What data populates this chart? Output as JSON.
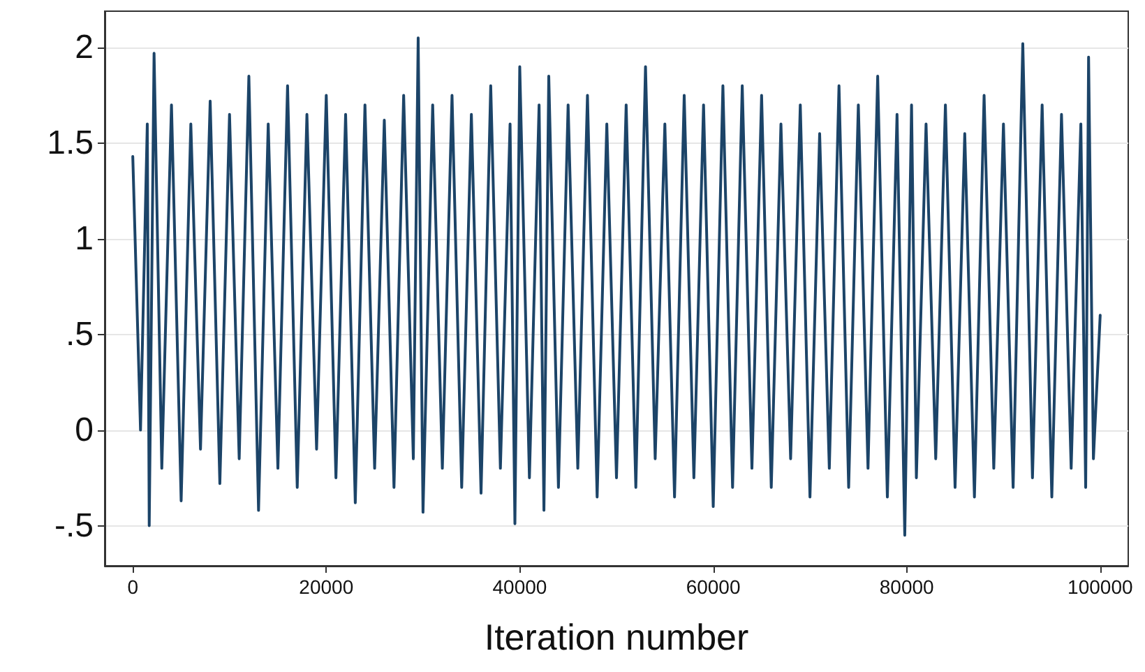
{
  "chart_data": {
    "type": "line",
    "xlabel": "Iteration number",
    "x": [
      0,
      800,
      1500,
      1700,
      2200,
      3000,
      4000,
      5000,
      6000,
      7000,
      8000,
      9000,
      10000,
      11000,
      12000,
      13000,
      14000,
      15000,
      16000,
      17000,
      18000,
      19000,
      20000,
      21000,
      22000,
      23000,
      24000,
      25000,
      26000,
      27000,
      28000,
      29000,
      29500,
      30000,
      31000,
      32000,
      33000,
      34000,
      35000,
      36000,
      37000,
      38000,
      39000,
      39500,
      40000,
      41000,
      42000,
      42500,
      43000,
      44000,
      45000,
      46000,
      47000,
      48000,
      49000,
      50000,
      51000,
      52000,
      53000,
      54000,
      55000,
      56000,
      57000,
      58000,
      59000,
      60000,
      61000,
      62000,
      63000,
      64000,
      65000,
      66000,
      67000,
      68000,
      69000,
      70000,
      71000,
      72000,
      73000,
      74000,
      75000,
      76000,
      77000,
      78000,
      79000,
      79800,
      80500,
      81000,
      82000,
      83000,
      84000,
      85000,
      86000,
      87000,
      88000,
      89000,
      90000,
      91000,
      92000,
      93000,
      94000,
      95000,
      96000,
      97000,
      98000,
      98500,
      98800,
      99300,
      100000
    ],
    "series": [
      {
        "color": "#1c4468",
        "values": [
          1.43,
          0.0,
          1.6,
          -0.5,
          1.97,
          -0.2,
          1.7,
          -0.37,
          1.6,
          -0.1,
          1.72,
          -0.28,
          1.65,
          -0.15,
          1.85,
          -0.42,
          1.6,
          -0.2,
          1.8,
          -0.3,
          1.65,
          -0.1,
          1.75,
          -0.25,
          1.65,
          -0.38,
          1.7,
          -0.2,
          1.62,
          -0.3,
          1.75,
          -0.15,
          2.05,
          -0.43,
          1.7,
          -0.2,
          1.75,
          -0.3,
          1.65,
          -0.33,
          1.8,
          -0.2,
          1.6,
          -0.49,
          1.9,
          -0.25,
          1.7,
          -0.42,
          1.85,
          -0.3,
          1.7,
          -0.2,
          1.75,
          -0.35,
          1.6,
          -0.25,
          1.7,
          -0.3,
          1.9,
          -0.15,
          1.6,
          -0.35,
          1.75,
          -0.25,
          1.7,
          -0.4,
          1.8,
          -0.3,
          1.8,
          -0.2,
          1.75,
          -0.3,
          1.6,
          -0.15,
          1.7,
          -0.35,
          1.55,
          -0.2,
          1.8,
          -0.3,
          1.7,
          -0.2,
          1.85,
          -0.35,
          1.65,
          -0.55,
          1.7,
          -0.25,
          1.6,
          -0.15,
          1.7,
          -0.3,
          1.55,
          -0.35,
          1.75,
          -0.2,
          1.6,
          -0.3,
          2.02,
          -0.25,
          1.7,
          -0.35,
          1.65,
          -0.2,
          1.6,
          -0.3,
          1.95,
          -0.15,
          0.6
        ]
      }
    ],
    "xlim": [
      -2900,
      102900
    ],
    "xticks": [
      0,
      20000,
      40000,
      60000,
      80000,
      100000
    ],
    "ylim": [
      -0.71,
      2.19
    ],
    "yticks": [
      {
        "value": -0.5,
        "label": "-.5"
      },
      0,
      {
        "value": 0.5,
        "label": ".5"
      },
      1,
      1.5,
      2
    ],
    "grid": "y",
    "marker": "none",
    "line_style": "solid"
  }
}
